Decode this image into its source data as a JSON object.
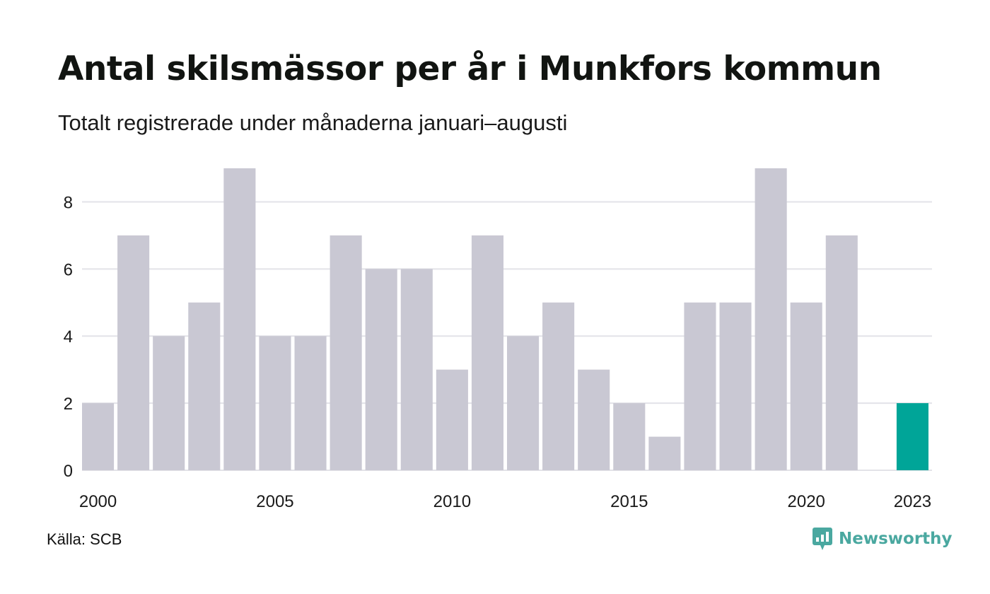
{
  "header": {
    "title": "Antal skilsmässor per år i Munkfors kommun",
    "subtitle": "Totalt registrerade under månaderna januari–augusti"
  },
  "footer": {
    "source": "Källa: SCB",
    "brand": "Newsworthy",
    "brand_icon": "newsworthy-logo-icon"
  },
  "colors": {
    "bar": "#c9c8d3",
    "highlight": "#00a598",
    "grid": "#e3e3e8",
    "brand": "#4aa8a0"
  },
  "chart_data": {
    "type": "bar",
    "title": "Antal skilsmässor per år i Munkfors kommun",
    "subtitle": "Totalt registrerade under månaderna januari–augusti",
    "xlabel": "",
    "ylabel": "",
    "ylim": [
      0,
      9
    ],
    "yticks": [
      0,
      2,
      4,
      6,
      8
    ],
    "grid": true,
    "categories": [
      "2000",
      "2001",
      "2002",
      "2003",
      "2004",
      "2005",
      "2006",
      "2007",
      "2008",
      "2009",
      "2010",
      "2011",
      "2012",
      "2013",
      "2014",
      "2015",
      "2016",
      "2017",
      "2018",
      "2019",
      "2020",
      "2021",
      "2022",
      "2023"
    ],
    "values": [
      2,
      7,
      4,
      5,
      9,
      4,
      4,
      7,
      6,
      6,
      3,
      7,
      4,
      5,
      3,
      2,
      1,
      5,
      5,
      9,
      5,
      7,
      null,
      2
    ],
    "highlight_category": "2023",
    "xtick_labels": [
      "2000",
      "2005",
      "2010",
      "2015",
      "2020",
      "2023"
    ]
  }
}
